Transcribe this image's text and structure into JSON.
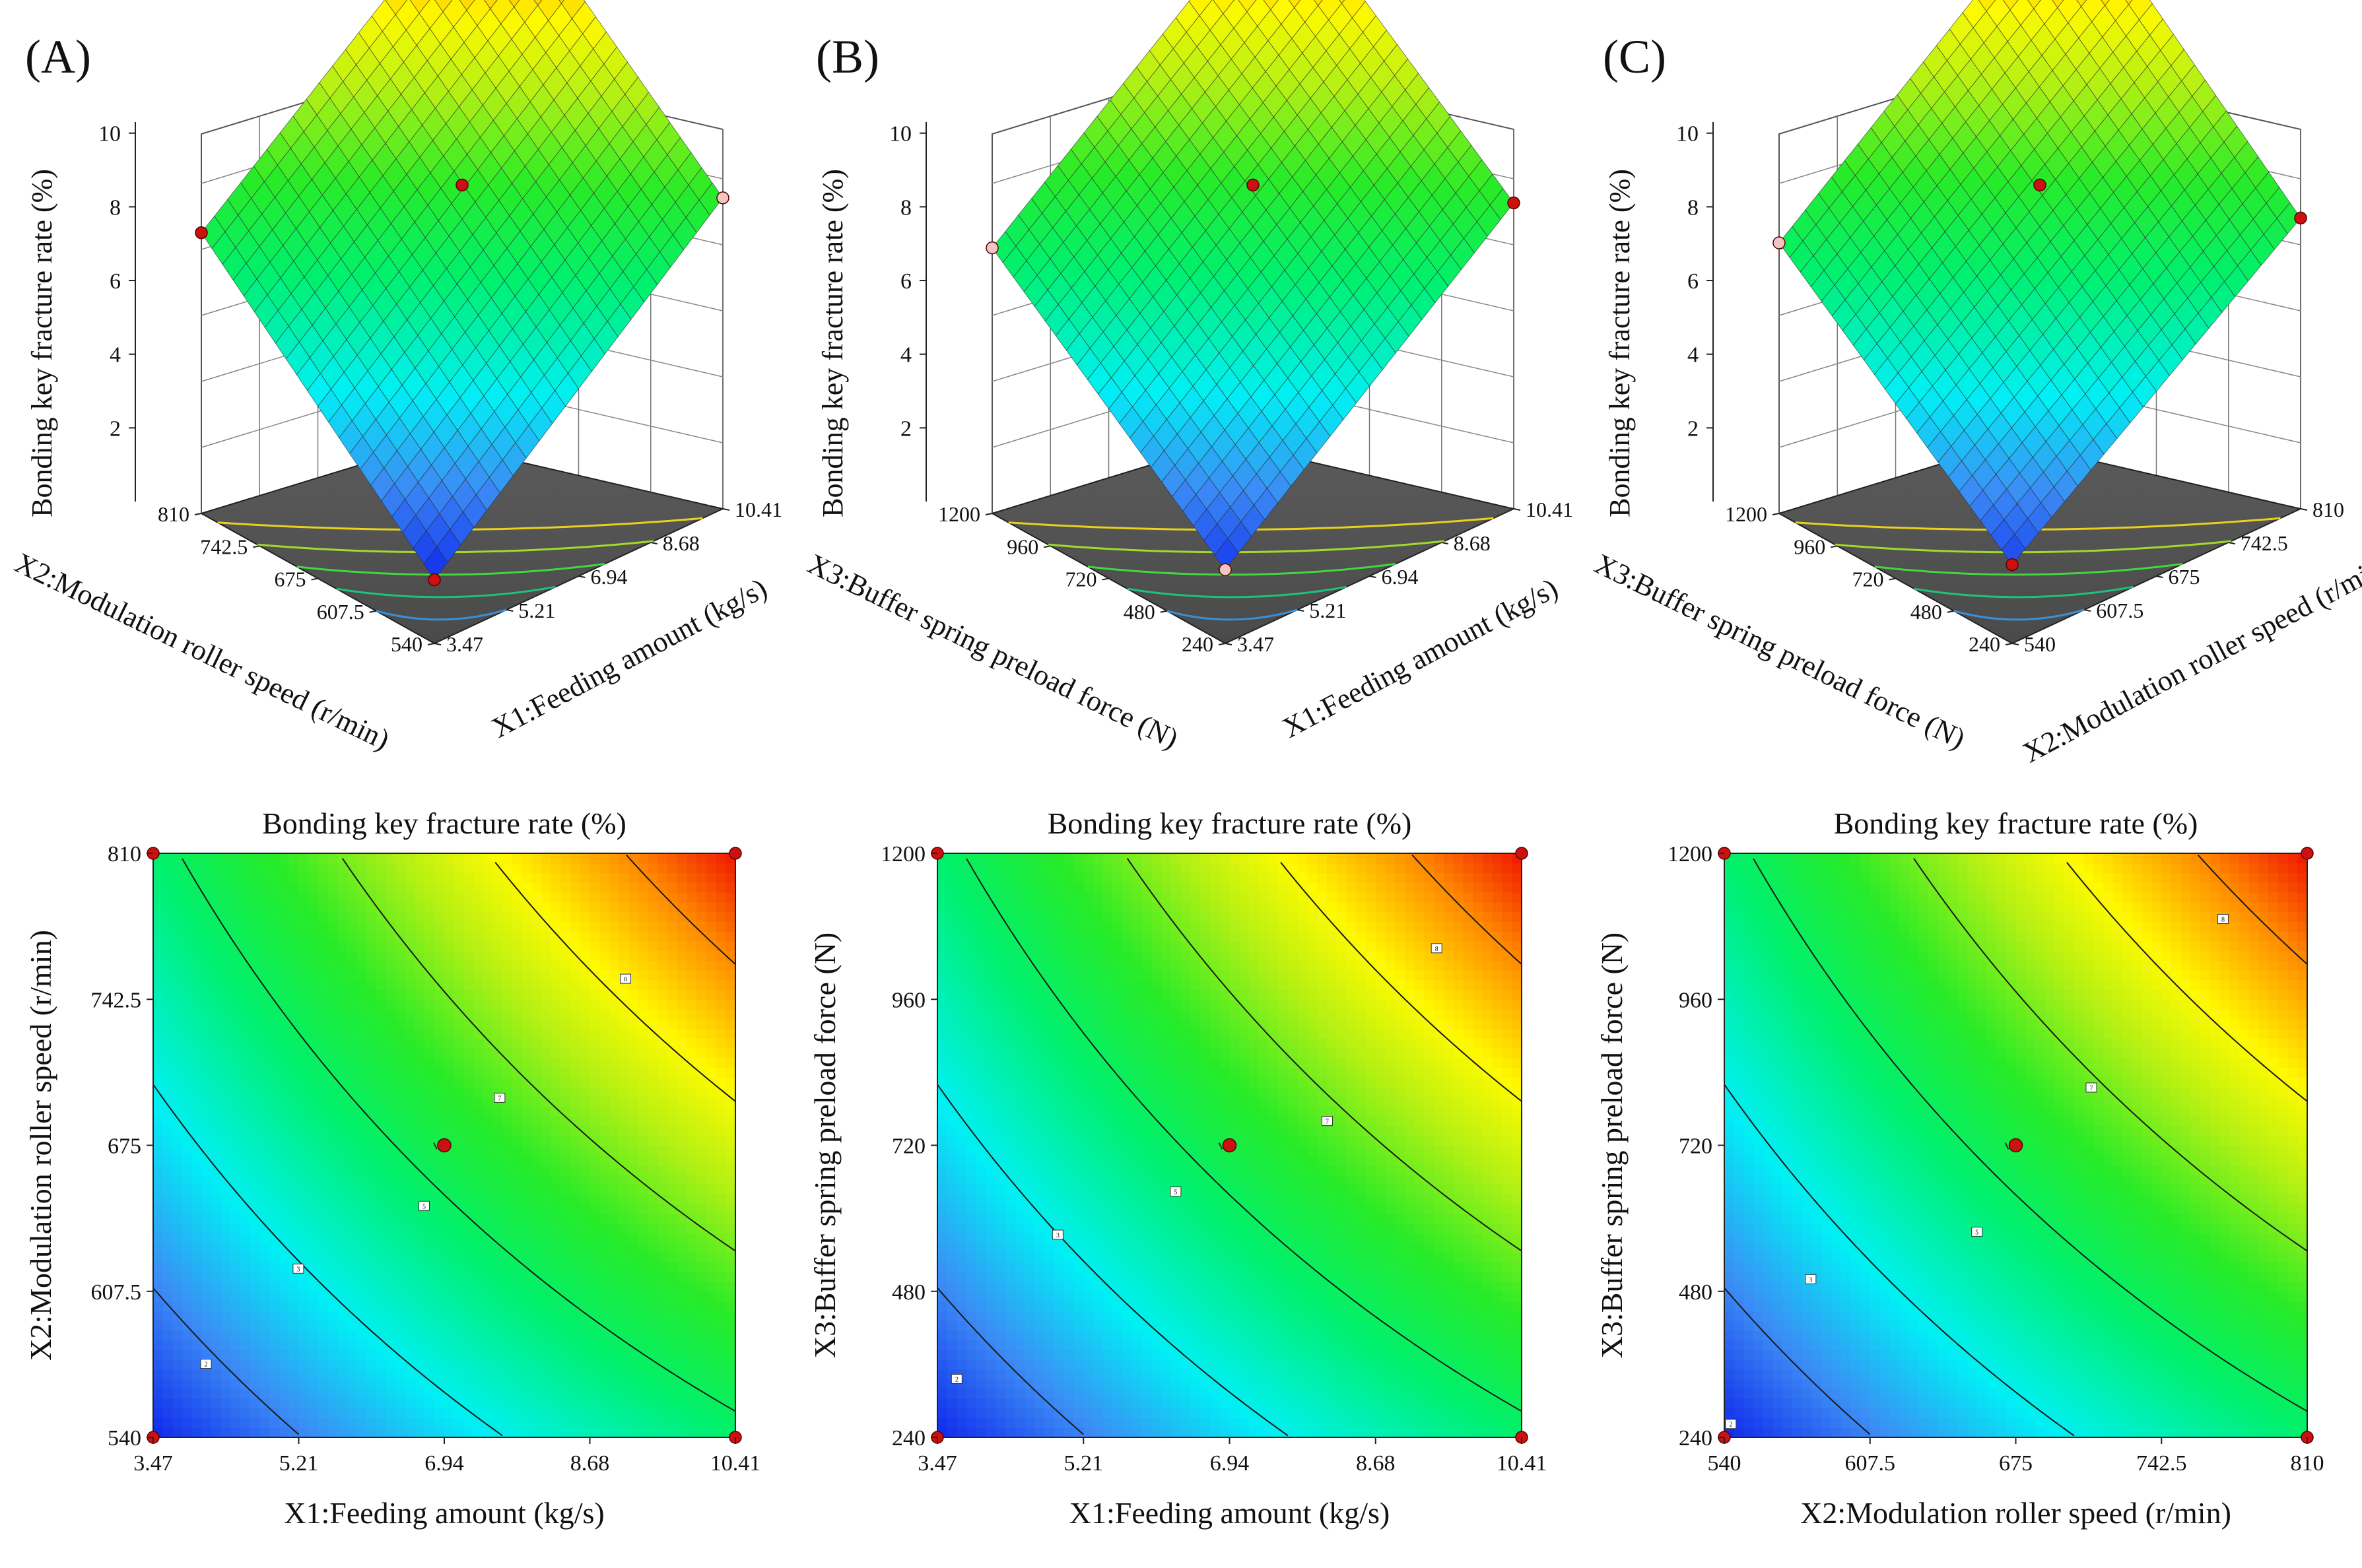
{
  "chart_data": [
    {
      "panel": "(A)",
      "type": "surface3d",
      "z_label": "Bonding key fracture rate (%)",
      "z_ticks": [
        "2",
        "4",
        "6",
        "8",
        "10"
      ],
      "zlim": [
        0,
        10
      ],
      "left_axis": {
        "label": "X2:Modulation roller speed (r/min)",
        "sub": "2",
        "ticks": [
          "540",
          "607.5",
          "675",
          "742.5",
          "810"
        ]
      },
      "right_axis": {
        "label": "X1:Feeding amount (kg/s)",
        "sub": "1",
        "ticks": [
          "3.47",
          "5.21",
          "6.94",
          "8.68",
          "10.41"
        ]
      },
      "corners": {
        "back": 9.9,
        "left": 5.3,
        "right": 5.9,
        "front": 1.0
      },
      "center_value": 6.2,
      "design_points": [
        {
          "position": "back",
          "value": 9.9,
          "color": "#cc1111"
        },
        {
          "position": "left",
          "value": 5.3,
          "color": "#cc1111"
        },
        {
          "position": "right",
          "value": 5.9,
          "color": "#f2c4c4"
        },
        {
          "position": "front",
          "value": 1.0,
          "color": "#cc1111"
        },
        {
          "position": "center",
          "value": 6.2,
          "color": "#cc1111"
        }
      ]
    },
    {
      "panel": "(B)",
      "type": "surface3d",
      "z_label": "Bonding key fracture rate (%)",
      "z_ticks": [
        "2",
        "4",
        "6",
        "8",
        "10"
      ],
      "zlim": [
        0,
        10
      ],
      "left_axis": {
        "label": "X3:Buffer spring preload force (N)",
        "sub": "3",
        "ticks": [
          "240",
          "480",
          "720",
          "960",
          "1200"
        ]
      },
      "right_axis": {
        "label": "X1:Feeding amount (kg/s)",
        "sub": "1",
        "ticks": [
          "3.47",
          "5.21",
          "6.94",
          "8.68",
          "10.41"
        ]
      },
      "corners": {
        "back": 9.5,
        "left": 5.0,
        "right": 5.8,
        "front": 1.2
      },
      "center_value": 6.2,
      "design_points": [
        {
          "position": "back",
          "value": 10.3,
          "color": "#cc1111"
        },
        {
          "position": "left",
          "value": 5.0,
          "color": "#f2c4c4"
        },
        {
          "position": "right",
          "value": 5.8,
          "color": "#cc1111"
        },
        {
          "position": "front",
          "value": 1.2,
          "color": "#f2c4c4"
        },
        {
          "position": "center",
          "value": 6.2,
          "color": "#cc1111"
        }
      ]
    },
    {
      "panel": "(C)",
      "type": "surface3d",
      "z_label": "Bonding key fracture rate (%)",
      "z_ticks": [
        "2",
        "4",
        "6",
        "8",
        "10"
      ],
      "zlim": [
        0,
        10
      ],
      "left_axis": {
        "label": "X3:Buffer spring preload force (N)",
        "sub": "3",
        "ticks": [
          "240",
          "480",
          "720",
          "960",
          "1200"
        ]
      },
      "right_axis": {
        "label": "X2:Modulation roller speed (r/min)",
        "sub": "2",
        "ticks": [
          "540",
          "607.5",
          "675",
          "742.5",
          "810"
        ]
      },
      "corners": {
        "back": 9.6,
        "left": 5.1,
        "right": 5.5,
        "front": 1.3
      },
      "center_value": 6.2,
      "design_points": [
        {
          "position": "back",
          "value": 9.9,
          "color": "#f2c4c4"
        },
        {
          "position": "left",
          "value": 5.1,
          "color": "#f2c4c4"
        },
        {
          "position": "right",
          "value": 5.5,
          "color": "#cc1111"
        },
        {
          "position": "front",
          "value": 1.3,
          "color": "#cc1111"
        },
        {
          "position": "center",
          "value": 6.2,
          "color": "#cc1111"
        }
      ]
    },
    {
      "panel": "A-contour",
      "type": "heatmap",
      "title": "Bonding key fracture rate (%)",
      "x_label": "X1:Feeding amount (kg/s)",
      "x_sub": "1",
      "y_label": "X2:Modulation roller speed (r/min)",
      "y_sub": "2",
      "x_ticks": [
        "3.47",
        "5.21",
        "6.94",
        "8.68",
        "10.41"
      ],
      "y_ticks": [
        "540",
        "607.5",
        "675",
        "742.5",
        "810"
      ],
      "xlim": [
        3.47,
        10.41
      ],
      "ylim": [
        540,
        810
      ],
      "contour_levels": [
        2,
        3,
        5,
        6,
        7,
        8
      ],
      "contour_labels": [
        {
          "level": "2",
          "x": 4.1,
          "y": 574
        },
        {
          "level": "3",
          "x": 5.2,
          "y": 618
        },
        {
          "level": "5",
          "x": 6.7,
          "y": 647
        },
        {
          "level": "7",
          "x": 7.6,
          "y": 697
        },
        {
          "level": "8",
          "x": 9.1,
          "y": 752
        }
      ],
      "center_point": {
        "x": 6.94,
        "y": 675
      },
      "corner_points": [
        [
          3.47,
          540
        ],
        [
          10.41,
          540
        ],
        [
          3.47,
          810
        ],
        [
          10.41,
          810
        ]
      ]
    },
    {
      "panel": "B-contour",
      "type": "heatmap",
      "title": "Bonding key fracture rate (%)",
      "x_label": "X1:Feeding amount (kg/s)",
      "x_sub": "1",
      "y_label": "X3:Buffer spring preload force (N)",
      "y_sub": "3",
      "x_ticks": [
        "3.47",
        "5.21",
        "6.94",
        "8.68",
        "10.41"
      ],
      "y_ticks": [
        "240",
        "480",
        "720",
        "960",
        "1200"
      ],
      "xlim": [
        3.47,
        10.41
      ],
      "ylim": [
        240,
        1200
      ],
      "contour_levels": [
        2,
        3,
        5,
        6,
        7,
        8
      ],
      "contour_labels": [
        {
          "level": "2",
          "x": 3.7,
          "y": 336
        },
        {
          "level": "3",
          "x": 4.9,
          "y": 573
        },
        {
          "level": "5",
          "x": 6.3,
          "y": 644
        },
        {
          "level": "7",
          "x": 8.1,
          "y": 760
        },
        {
          "level": "8",
          "x": 9.4,
          "y": 1044
        }
      ],
      "center_point": {
        "x": 6.94,
        "y": 720
      },
      "corner_points": [
        [
          3.47,
          240
        ],
        [
          10.41,
          240
        ],
        [
          3.47,
          1200
        ],
        [
          10.41,
          1200
        ]
      ]
    },
    {
      "panel": "C-contour",
      "type": "heatmap",
      "title": "Bonding key fracture rate (%)",
      "x_label": "X2:Modulation roller speed (r/min)",
      "x_sub": "2",
      "y_label": "X3:Buffer spring preload force (N)",
      "y_sub": "3",
      "x_ticks": [
        "540",
        "607.5",
        "675",
        "742.5",
        "810"
      ],
      "y_ticks": [
        "240",
        "480",
        "720",
        "960",
        "1200"
      ],
      "xlim": [
        540,
        810
      ],
      "ylim": [
        240,
        1200
      ],
      "contour_levels": [
        2,
        3,
        5,
        6,
        7,
        8
      ],
      "contour_labels": [
        {
          "level": "2",
          "x": 543,
          "y": 262
        },
        {
          "level": "3",
          "x": 580,
          "y": 500
        },
        {
          "level": "5",
          "x": 657,
          "y": 578
        },
        {
          "level": "7",
          "x": 710,
          "y": 815
        },
        {
          "level": "8",
          "x": 771,
          "y": 1092
        }
      ],
      "center_point": {
        "x": 675,
        "y": 720
      },
      "corner_points": [
        [
          540,
          240
        ],
        [
          810,
          240
        ],
        [
          540,
          1200
        ],
        [
          810,
          1200
        ]
      ]
    }
  ]
}
